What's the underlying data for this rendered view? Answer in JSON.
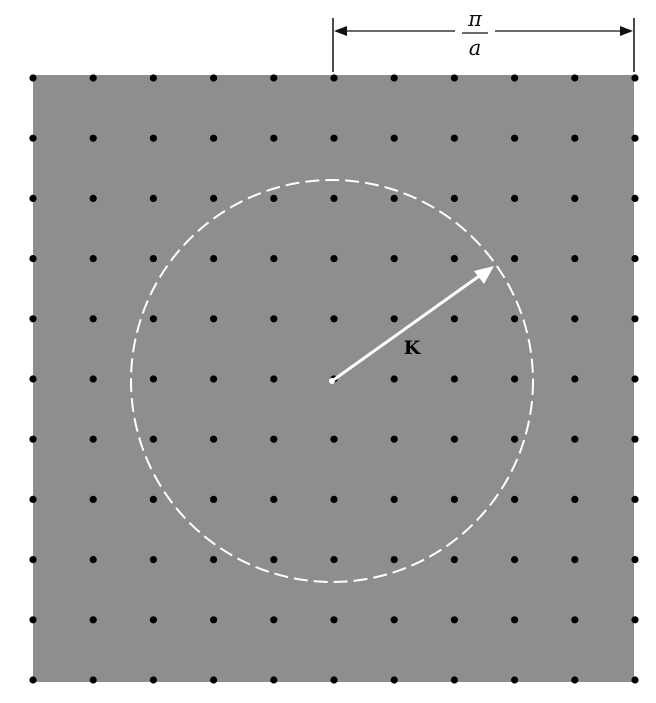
{
  "dimension_label": {
    "numerator": "π",
    "denominator": "a"
  },
  "vector_label": "K",
  "colors": {
    "panel": "#8e8e8e",
    "dot": "#000000",
    "circle": "#ffffff",
    "arrow": "#ffffff",
    "dimension_line": "#111111"
  },
  "lattice": {
    "visible_columns": 11,
    "visible_rows": 11
  }
}
